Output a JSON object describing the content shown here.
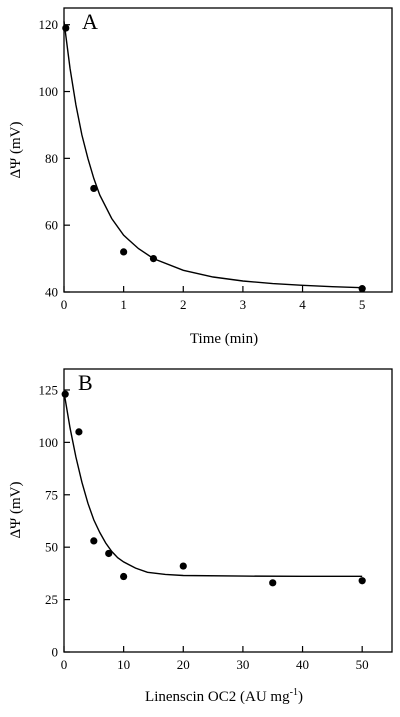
{
  "chart_data": [
    {
      "type": "scatter",
      "panel_label": "A",
      "xlabel": "Time (min)",
      "ylabel": "ΔΨ (mV)",
      "xlim": [
        0,
        5.5
      ],
      "ylim": [
        40,
        125
      ],
      "x_ticks": [
        0,
        1,
        2,
        3,
        4,
        5
      ],
      "y_ticks": [
        40,
        60,
        80,
        100,
        120
      ],
      "grid": false,
      "legend": "none",
      "series": [
        {
          "points": [
            {
              "x": 0.03,
              "y": 119
            },
            {
              "x": 0.5,
              "y": 71
            },
            {
              "x": 1.0,
              "y": 52
            },
            {
              "x": 1.5,
              "y": 50
            },
            {
              "x": 5.0,
              "y": 41
            }
          ],
          "fit_curve": [
            {
              "x": 0.0,
              "y": 121
            },
            {
              "x": 0.1,
              "y": 107
            },
            {
              "x": 0.2,
              "y": 96
            },
            {
              "x": 0.3,
              "y": 87
            },
            {
              "x": 0.4,
              "y": 80
            },
            {
              "x": 0.5,
              "y": 74
            },
            {
              "x": 0.6,
              "y": 69
            },
            {
              "x": 0.8,
              "y": 62
            },
            {
              "x": 1.0,
              "y": 57
            },
            {
              "x": 1.25,
              "y": 53
            },
            {
              "x": 1.5,
              "y": 50
            },
            {
              "x": 2.0,
              "y": 46.5
            },
            {
              "x": 2.5,
              "y": 44.5
            },
            {
              "x": 3.0,
              "y": 43.3
            },
            {
              "x": 3.5,
              "y": 42.5
            },
            {
              "x": 4.0,
              "y": 42.0
            },
            {
              "x": 4.5,
              "y": 41.6
            },
            {
              "x": 5.0,
              "y": 41.3
            }
          ]
        }
      ]
    },
    {
      "type": "scatter",
      "panel_label": "B",
      "xlabel": "Linenscin OC2 (AU mg",
      "xlabel_superscript": "-1",
      "xlabel_suffix": ")",
      "ylabel": "ΔΨ (mV)",
      "xlim": [
        0,
        55
      ],
      "ylim": [
        0,
        135
      ],
      "x_ticks": [
        0,
        10,
        20,
        30,
        40,
        50
      ],
      "y_ticks": [
        0,
        25,
        50,
        75,
        100,
        125
      ],
      "grid": false,
      "legend": "none",
      "series": [
        {
          "points": [
            {
              "x": 0.2,
              "y": 123
            },
            {
              "x": 2.5,
              "y": 105
            },
            {
              "x": 5.0,
              "y": 53
            },
            {
              "x": 7.5,
              "y": 47
            },
            {
              "x": 10.0,
              "y": 36
            },
            {
              "x": 20.0,
              "y": 41
            },
            {
              "x": 35.0,
              "y": 33
            },
            {
              "x": 50.0,
              "y": 34
            }
          ],
          "fit_curve": [
            {
              "x": 0,
              "y": 124
            },
            {
              "x": 1,
              "y": 107
            },
            {
              "x": 2,
              "y": 93
            },
            {
              "x": 3,
              "y": 81
            },
            {
              "x": 4,
              "y": 71
            },
            {
              "x": 5,
              "y": 63
            },
            {
              "x": 6,
              "y": 57
            },
            {
              "x": 7,
              "y": 52
            },
            {
              "x": 8,
              "y": 48
            },
            {
              "x": 9,
              "y": 45
            },
            {
              "x": 10,
              "y": 43
            },
            {
              "x": 12,
              "y": 40
            },
            {
              "x": 14,
              "y": 38
            },
            {
              "x": 17,
              "y": 37
            },
            {
              "x": 20,
              "y": 36.5
            },
            {
              "x": 30,
              "y": 36.2
            },
            {
              "x": 40,
              "y": 36.1
            },
            {
              "x": 50,
              "y": 36.1
            }
          ]
        }
      ]
    }
  ]
}
